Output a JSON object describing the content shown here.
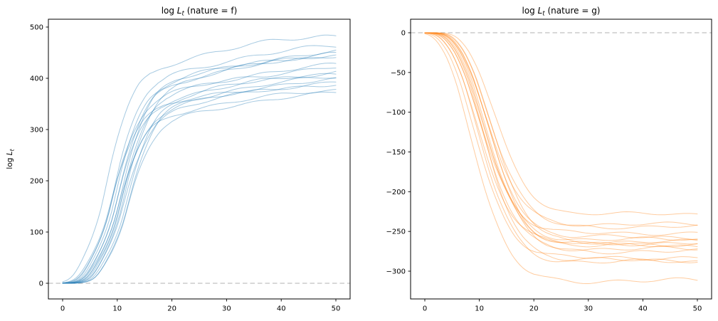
{
  "figure": {
    "background": "#ffffff",
    "layout": {
      "rows": 1,
      "cols": 2
    }
  },
  "chart_data": [
    {
      "type": "line",
      "title_plain": "log L_t (nature = f)",
      "title": {
        "pre": "log ",
        "var": "L",
        "sub": "t",
        "post": " (nature = f)"
      },
      "ylabel_plain": "log L_t",
      "ylabel": {
        "pre": "log ",
        "var": "L",
        "sub": "t"
      },
      "xlabel": "",
      "xticks": [
        0,
        10,
        20,
        30,
        40,
        50
      ],
      "yticks": [
        0,
        100,
        200,
        300,
        400,
        500
      ],
      "xlim": [
        -2.6,
        52.6
      ],
      "ylim": [
        -30,
        515
      ],
      "grid": false,
      "legend": "none",
      "zero_line": {
        "y": 0,
        "style": "dashed",
        "color": "#b0b0b0"
      },
      "line_color": "#1f77b4",
      "line_alpha": 0.4,
      "line_width": 1,
      "n_series": 16,
      "shape_x": [
        0,
        1,
        2,
        3,
        4,
        5,
        6,
        7,
        8,
        9,
        10,
        11,
        12,
        13,
        14,
        15,
        16,
        17,
        18,
        20,
        22,
        24,
        26,
        28,
        30,
        33,
        36,
        40,
        45,
        50
      ],
      "shape_f": [
        0,
        0.002,
        0.006,
        0.015,
        0.035,
        0.07,
        0.115,
        0.165,
        0.225,
        0.3,
        0.4,
        0.5,
        0.585,
        0.655,
        0.715,
        0.762,
        0.8,
        0.825,
        0.845,
        0.872,
        0.889,
        0.903,
        0.915,
        0.926,
        0.936,
        0.949,
        0.961,
        0.974,
        0.988,
        1.0
      ],
      "series": [
        {
          "final": 483,
          "shift": -2.0
        },
        {
          "final": 463,
          "shift": -0.5
        },
        {
          "final": 452,
          "shift": 0.8
        },
        {
          "final": 449,
          "shift": -0.2
        },
        {
          "final": 447,
          "shift": 1.5
        },
        {
          "final": 445,
          "shift": 0.3
        },
        {
          "final": 427,
          "shift": 1.0
        },
        {
          "final": 421,
          "shift": -0.8
        },
        {
          "final": 414,
          "shift": 1.8
        },
        {
          "final": 410,
          "shift": 0.0
        },
        {
          "final": 405,
          "shift": 2.2
        },
        {
          "final": 396,
          "shift": -1.2
        },
        {
          "final": 393,
          "shift": 0.6
        },
        {
          "final": 391,
          "shift": 1.2
        },
        {
          "final": 377,
          "shift": 0.2
        },
        {
          "final": 373,
          "shift": 2.0
        }
      ]
    },
    {
      "type": "line",
      "title_plain": "log L_t (nature = g)",
      "title": {
        "pre": "log ",
        "var": "L",
        "sub": "t",
        "post": " (nature = g)"
      },
      "ylabel_plain": "",
      "ylabel": null,
      "xlabel": "",
      "xticks": [
        0,
        10,
        20,
        30,
        40,
        50
      ],
      "yticks": [
        0,
        -50,
        -100,
        -150,
        -200,
        -250,
        -300
      ],
      "xlim": [
        -2.6,
        52.6
      ],
      "ylim": [
        -335,
        17
      ],
      "grid": false,
      "legend": "none",
      "zero_line": {
        "y": 0,
        "style": "dashed",
        "color": "#b0b0b0"
      },
      "line_color": "#ff7f0e",
      "line_alpha": 0.4,
      "line_width": 1,
      "n_series": 16,
      "shape_x": [
        0,
        1,
        2,
        3,
        4,
        5,
        6,
        7,
        8,
        9,
        10,
        11,
        12,
        13,
        14,
        15,
        16,
        17,
        18,
        19,
        20,
        21,
        22,
        24,
        26,
        30,
        35,
        40,
        45,
        50
      ],
      "shape_f": [
        0,
        0.001,
        0.004,
        0.012,
        0.03,
        0.06,
        0.1,
        0.155,
        0.22,
        0.3,
        0.385,
        0.47,
        0.555,
        0.635,
        0.705,
        0.765,
        0.818,
        0.862,
        0.898,
        0.925,
        0.947,
        0.963,
        0.975,
        0.989,
        0.996,
        1.0,
        1.0,
        1.0,
        1.0,
        1.0
      ],
      "series": [
        {
          "final": -228,
          "shift": 2.0
        },
        {
          "final": -241,
          "shift": 0.5
        },
        {
          "final": -244,
          "shift": 1.2
        },
        {
          "final": -252,
          "shift": -0.5
        },
        {
          "final": -257,
          "shift": 0.8
        },
        {
          "final": -260,
          "shift": 0.0
        },
        {
          "final": -263,
          "shift": 1.5
        },
        {
          "final": -265,
          "shift": -1.0
        },
        {
          "final": -266,
          "shift": 0.3
        },
        {
          "final": -268,
          "shift": 1.0
        },
        {
          "final": -272,
          "shift": -0.3
        },
        {
          "final": -275,
          "shift": 0.7
        },
        {
          "final": -283,
          "shift": -1.5
        },
        {
          "final": -286,
          "shift": 0.1
        },
        {
          "final": -288,
          "shift": -0.8
        },
        {
          "final": -312,
          "shift": -2.0
        }
      ]
    }
  ]
}
